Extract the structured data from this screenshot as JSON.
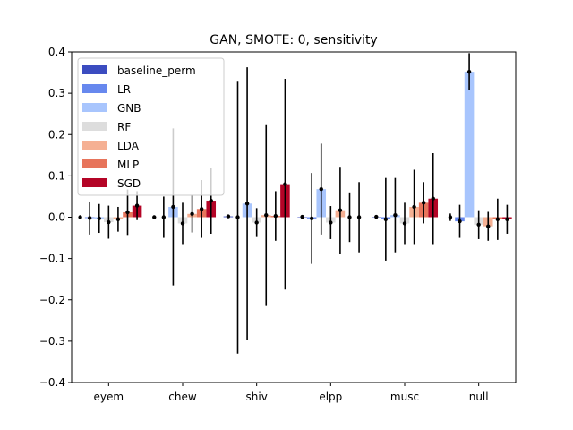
{
  "chart_data": {
    "type": "bar",
    "title": "GAN, SMOTE: 0, sensitivity",
    "xlabel": "",
    "ylabel": "",
    "ylim": [
      -0.4,
      0.4
    ],
    "yticks": [
      -0.4,
      -0.3,
      -0.2,
      -0.1,
      0.0,
      0.1,
      0.2,
      0.3,
      0.4
    ],
    "ytick_labels": [
      "−0.4",
      "−0.3",
      "−0.2",
      "−0.1",
      "0.0",
      "0.1",
      "0.2",
      "0.3",
      "0.4"
    ],
    "categories": [
      "eyem",
      "chew",
      "shiv",
      "elpp",
      "musc",
      "null"
    ],
    "grid": false,
    "legend_position": "top-left",
    "series": [
      {
        "name": "baseline_perm",
        "color": "#3b4cc0",
        "values": [
          0.0,
          0.0,
          0.002,
          0.001,
          0.001,
          0.0
        ],
        "err": [
          0.0,
          0.004,
          0.002,
          0.004,
          0.003,
          0.009
        ]
      },
      {
        "name": "LR",
        "color": "#6788ee",
        "values": [
          -0.002,
          0.0,
          0.0,
          -0.003,
          -0.005,
          -0.01
        ],
        "err": [
          0.04,
          0.05,
          0.33,
          0.11,
          0.1,
          0.04
        ]
      },
      {
        "name": "GNB",
        "color": "#a8c5fd",
        "values": [
          -0.003,
          0.025,
          0.033,
          0.068,
          0.005,
          0.352
        ],
        "err": [
          0.035,
          0.19,
          0.33,
          0.11,
          0.09,
          0.045
        ]
      },
      {
        "name": "RF",
        "color": "#dddddd",
        "values": [
          -0.012,
          -0.015,
          -0.013,
          -0.013,
          -0.015,
          -0.018
        ],
        "err": [
          0.04,
          0.05,
          0.035,
          0.04,
          0.05,
          0.035
        ]
      },
      {
        "name": "LDA",
        "color": "#f5b093",
        "values": [
          -0.005,
          0.008,
          0.005,
          0.017,
          0.025,
          -0.022
        ],
        "err": [
          0.03,
          0.045,
          0.22,
          0.105,
          0.09,
          0.035
        ]
      },
      {
        "name": "MLP",
        "color": "#e7745b",
        "values": [
          0.012,
          0.02,
          0.003,
          0.0,
          0.035,
          -0.005
        ],
        "err": [
          0.055,
          0.07,
          0.06,
          0.06,
          0.05,
          0.05
        ]
      },
      {
        "name": "SGD",
        "color": "#b40426",
        "values": [
          0.028,
          0.04,
          0.08,
          0.0,
          0.045,
          -0.005
        ],
        "err": [
          0.035,
          0.08,
          0.255,
          0.085,
          0.11,
          0.035
        ]
      }
    ]
  }
}
